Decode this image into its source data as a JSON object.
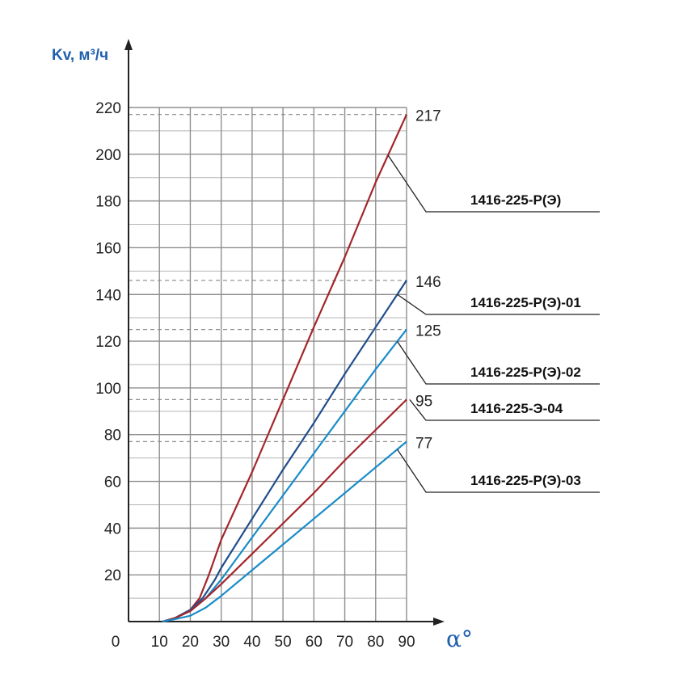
{
  "chart_data": {
    "type": "line",
    "ylabel": "Kv, м³/ч",
    "xlabel": "α°",
    "xlim": [
      0,
      90
    ],
    "ylim": [
      0,
      220
    ],
    "x_ticks": [
      "0",
      "10",
      "20",
      "30",
      "40",
      "50",
      "60",
      "70",
      "80",
      "90"
    ],
    "y_ticks": [
      "20",
      "40",
      "60",
      "80",
      "100",
      "120",
      "140",
      "160",
      "180",
      "200",
      "220"
    ],
    "grid": true,
    "series": [
      {
        "name": "1416-225-Р(Э)",
        "color": "#a3262b",
        "end_value": "217",
        "points": [
          [
            11,
            0
          ],
          [
            15,
            1.5
          ],
          [
            20,
            5
          ],
          [
            23,
            10
          ],
          [
            26,
            20
          ],
          [
            30,
            35
          ],
          [
            40,
            64
          ],
          [
            50,
            95
          ],
          [
            60,
            126
          ],
          [
            70,
            156
          ],
          [
            80,
            188
          ],
          [
            90,
            217
          ]
        ]
      },
      {
        "name": "1416-225-Р(Э)-01",
        "color": "#1f4e8c",
        "end_value": "146",
        "points": [
          [
            11,
            0
          ],
          [
            15,
            1.5
          ],
          [
            20,
            5
          ],
          [
            24,
            10
          ],
          [
            28,
            18
          ],
          [
            30,
            23
          ],
          [
            40,
            44
          ],
          [
            50,
            65
          ],
          [
            60,
            85
          ],
          [
            70,
            106
          ],
          [
            80,
            126
          ],
          [
            90,
            146
          ]
        ]
      },
      {
        "name": "1416-225-Р(Э)-02",
        "color": "#1a8bc9",
        "end_value": "125",
        "points": [
          [
            11,
            0
          ],
          [
            15,
            1.5
          ],
          [
            20,
            4.5
          ],
          [
            25,
            10
          ],
          [
            30,
            18
          ],
          [
            40,
            36
          ],
          [
            50,
            54
          ],
          [
            60,
            72
          ],
          [
            70,
            90
          ],
          [
            80,
            108
          ],
          [
            90,
            125
          ]
        ]
      },
      {
        "name": "1416-225-Э-04",
        "color": "#a3262b",
        "end_value": "95",
        "points": [
          [
            11,
            0
          ],
          [
            15,
            1.5
          ],
          [
            20,
            4.5
          ],
          [
            25,
            10
          ],
          [
            30,
            16
          ],
          [
            40,
            29
          ],
          [
            50,
            42
          ],
          [
            60,
            55
          ],
          [
            70,
            69
          ],
          [
            80,
            82
          ],
          [
            90,
            95
          ]
        ]
      },
      {
        "name": "1416-225-Р(Э)-03",
        "color": "#1a8bc9",
        "end_value": "77",
        "points": [
          [
            11,
            0
          ],
          [
            15,
            1
          ],
          [
            20,
            2.5
          ],
          [
            25,
            6
          ],
          [
            30,
            11
          ],
          [
            40,
            22
          ],
          [
            50,
            33
          ],
          [
            60,
            44
          ],
          [
            70,
            55
          ],
          [
            80,
            66
          ],
          [
            90,
            77
          ]
        ]
      }
    ]
  }
}
